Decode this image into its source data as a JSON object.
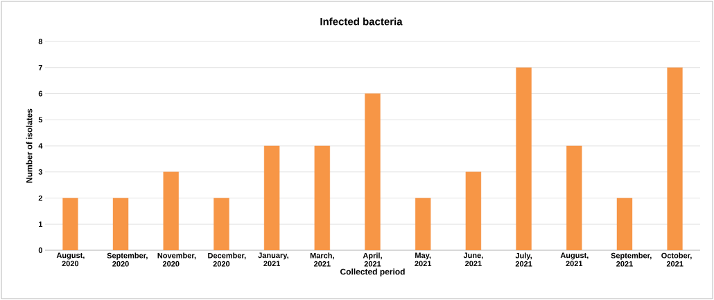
{
  "chart_data": {
    "type": "bar",
    "title": "Infected bacteria",
    "xlabel": "Collected period",
    "ylabel": "Number of  isolates",
    "categories": [
      "August, 2020",
      "September, 2020",
      "November, 2020",
      "December, 2020",
      "January, 2021",
      "March, 2021",
      "April, 2021",
      "May, 2021",
      "June, 2021",
      "July, 2021",
      "August, 2021",
      "September, 2021",
      "October, 2021"
    ],
    "values": [
      2,
      2,
      3,
      2,
      4,
      4,
      6,
      2,
      3,
      7,
      4,
      2,
      7
    ],
    "color": "#f79646",
    "ylim": [
      0,
      8
    ],
    "yticks": [
      0,
      1,
      2,
      3,
      4,
      5,
      6,
      7,
      8
    ],
    "grid": "y"
  }
}
